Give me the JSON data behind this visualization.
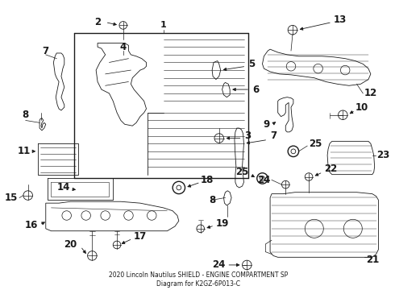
{
  "title": "2020 Lincoln Nautilus SHIELD - ENGINE COMPARTMENT SP\nDiagram for K2GZ-6P013-C",
  "background_color": "#ffffff",
  "line_color": "#1a1a1a",
  "figsize": [
    4.9,
    3.6
  ],
  "dpi": 100
}
